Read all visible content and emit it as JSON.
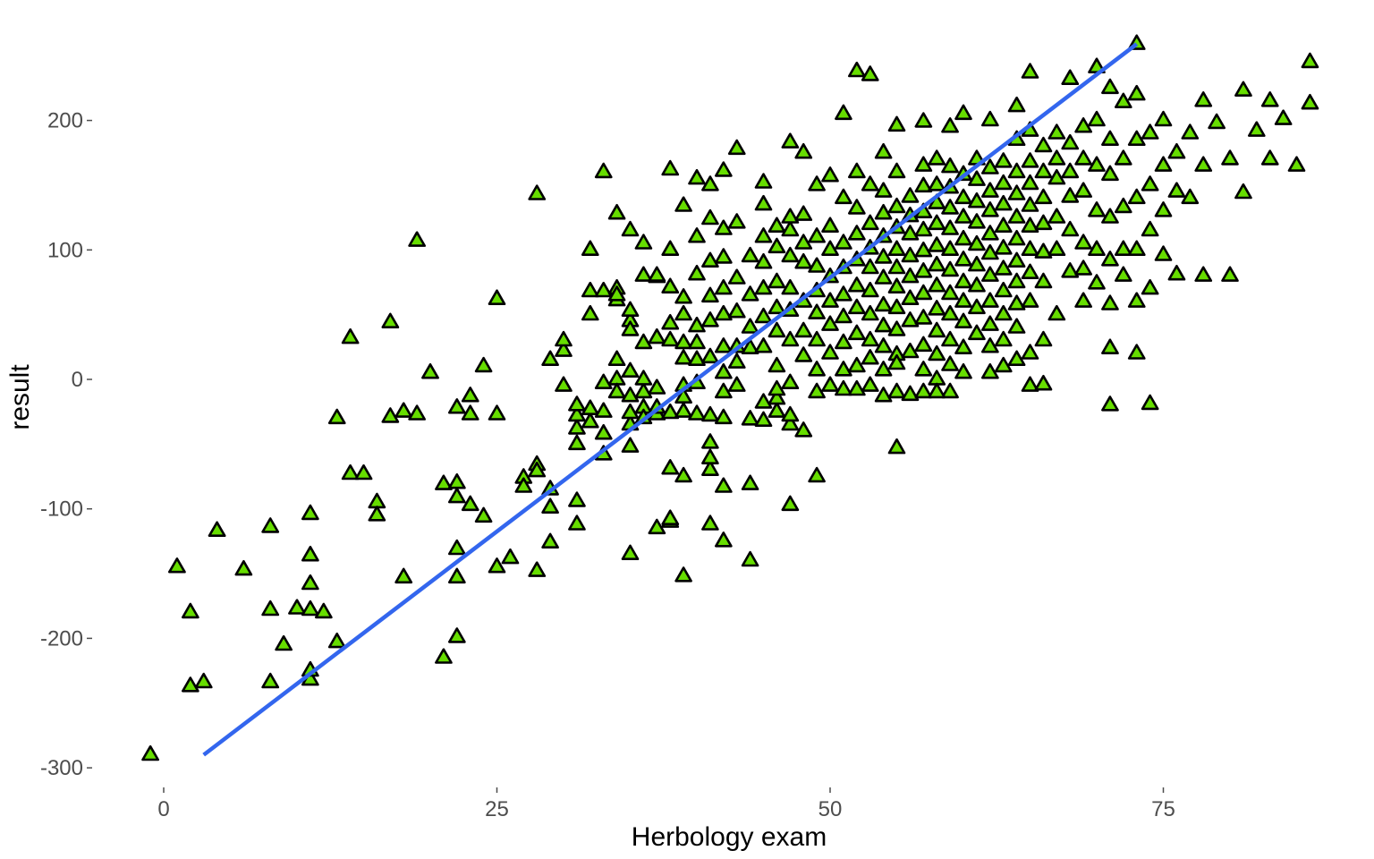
{
  "chart_data": {
    "type": "scatter",
    "title": "",
    "xlabel": "Herbology exam",
    "ylabel": "result",
    "xlim": [
      -3,
      88
    ],
    "ylim": [
      -315,
      270
    ],
    "x_ticks": [
      0,
      25,
      50,
      75
    ],
    "y_ticks": [
      200,
      100,
      0,
      -100,
      -200,
      -300
    ],
    "x_tick_labels": [
      "0",
      "25",
      "50",
      "75"
    ],
    "y_tick_labels": [
      "200",
      "100",
      "0",
      "-100",
      "-200",
      "-300"
    ],
    "grid": false,
    "legend": "none",
    "point_shape": "triangle",
    "point_fill": "#66dd00",
    "point_outline": "#000000",
    "fit_line": {
      "x": [
        3,
        73
      ],
      "y": [
        -290,
        259
      ],
      "color": "#3366ee"
    },
    "points": [
      [
        -1,
        -290
      ],
      [
        1,
        -145
      ],
      [
        2,
        -180
      ],
      [
        2,
        -237
      ],
      [
        3,
        -234
      ],
      [
        4,
        -117
      ],
      [
        6,
        -147
      ],
      [
        8,
        -178
      ],
      [
        8,
        -234
      ],
      [
        8,
        -114
      ],
      [
        9,
        -205
      ],
      [
        10,
        -177
      ],
      [
        11,
        -232
      ],
      [
        11,
        -104
      ],
      [
        11,
        -136
      ],
      [
        11,
        -158
      ],
      [
        11,
        -178
      ],
      [
        11,
        -225
      ],
      [
        12,
        -180
      ],
      [
        13,
        -203
      ],
      [
        13,
        -30
      ],
      [
        14,
        32
      ],
      [
        14,
        -73
      ],
      [
        15,
        -73
      ],
      [
        16,
        -95
      ],
      [
        16,
        -105
      ],
      [
        17,
        -29
      ],
      [
        17,
        44
      ],
      [
        18,
        -153
      ],
      [
        18,
        -25
      ],
      [
        19,
        -27
      ],
      [
        19,
        107
      ],
      [
        20,
        5
      ],
      [
        21,
        -81
      ],
      [
        21,
        -215
      ],
      [
        22,
        -199
      ],
      [
        22,
        -131
      ],
      [
        22,
        -153
      ],
      [
        22,
        -22
      ],
      [
        22,
        -80
      ],
      [
        22,
        -91
      ],
      [
        23,
        -97
      ],
      [
        23,
        -13
      ],
      [
        23,
        -27
      ],
      [
        24,
        -106
      ],
      [
        24,
        10
      ],
      [
        25,
        -27
      ],
      [
        25,
        62
      ],
      [
        25,
        -145
      ],
      [
        26,
        -138
      ],
      [
        27,
        -76
      ],
      [
        27,
        -83
      ],
      [
        28,
        -148
      ],
      [
        28,
        143
      ],
      [
        28,
        -66
      ],
      [
        28,
        -71
      ],
      [
        29,
        -99
      ],
      [
        29,
        -85
      ],
      [
        29,
        15
      ],
      [
        29,
        -126
      ],
      [
        30,
        -5
      ],
      [
        30,
        22
      ],
      [
        30,
        30
      ],
      [
        31,
        -112
      ],
      [
        31,
        -94
      ],
      [
        31,
        -50
      ],
      [
        31,
        -38
      ],
      [
        31,
        -28
      ],
      [
        31,
        -20
      ],
      [
        32,
        100
      ],
      [
        32,
        68
      ],
      [
        32,
        50
      ],
      [
        32,
        -33
      ],
      [
        32,
        -23
      ],
      [
        33,
        -42
      ],
      [
        33,
        -58
      ],
      [
        33,
        -25
      ],
      [
        33,
        -3
      ],
      [
        33,
        68
      ],
      [
        33,
        160
      ],
      [
        34,
        0
      ],
      [
        34,
        15
      ],
      [
        34,
        -10
      ],
      [
        34,
        61
      ],
      [
        34,
        70
      ],
      [
        34,
        65
      ],
      [
        34,
        128
      ],
      [
        35,
        -135
      ],
      [
        35,
        -52
      ],
      [
        35,
        -13
      ],
      [
        35,
        -35
      ],
      [
        35,
        -26
      ],
      [
        35,
        6
      ],
      [
        35,
        45
      ],
      [
        35,
        53
      ],
      [
        35,
        38
      ],
      [
        35,
        115
      ],
      [
        36,
        -22
      ],
      [
        36,
        -30
      ],
      [
        36,
        -10
      ],
      [
        36,
        80
      ],
      [
        36,
        105
      ],
      [
        36,
        0
      ],
      [
        36,
        28
      ],
      [
        37,
        -115
      ],
      [
        37,
        -27
      ],
      [
        37,
        -22
      ],
      [
        37,
        -7
      ],
      [
        37,
        32
      ],
      [
        37,
        79
      ],
      [
        37,
        80
      ],
      [
        38,
        -110
      ],
      [
        38,
        -108
      ],
      [
        38,
        -69
      ],
      [
        38,
        -26
      ],
      [
        38,
        30
      ],
      [
        38,
        43
      ],
      [
        38,
        71
      ],
      [
        38,
        100
      ],
      [
        38,
        162
      ],
      [
        39,
        -152
      ],
      [
        39,
        -75
      ],
      [
        39,
        -25
      ],
      [
        39,
        -5
      ],
      [
        39,
        -14
      ],
      [
        39,
        16
      ],
      [
        39,
        28
      ],
      [
        39,
        50
      ],
      [
        39,
        63
      ],
      [
        39,
        134
      ],
      [
        40,
        -27
      ],
      [
        40,
        -3
      ],
      [
        40,
        15
      ],
      [
        40,
        28
      ],
      [
        40,
        41
      ],
      [
        40,
        81
      ],
      [
        40,
        110
      ],
      [
        40,
        155
      ],
      [
        41,
        -112
      ],
      [
        41,
        -70
      ],
      [
        41,
        -61
      ],
      [
        41,
        -49
      ],
      [
        41,
        -28
      ],
      [
        41,
        17
      ],
      [
        41,
        45
      ],
      [
        41,
        64
      ],
      [
        41,
        91
      ],
      [
        41,
        124
      ],
      [
        41,
        150
      ],
      [
        42,
        -125
      ],
      [
        42,
        -83
      ],
      [
        42,
        -30
      ],
      [
        42,
        -10
      ],
      [
        42,
        5
      ],
      [
        42,
        25
      ],
      [
        42,
        50
      ],
      [
        42,
        70
      ],
      [
        42,
        94
      ],
      [
        42,
        116
      ],
      [
        42,
        161
      ],
      [
        43,
        -5
      ],
      [
        43,
        13
      ],
      [
        43,
        25
      ],
      [
        43,
        52
      ],
      [
        43,
        78
      ],
      [
        43,
        121
      ],
      [
        43,
        178
      ],
      [
        44,
        -31
      ],
      [
        44,
        -140
      ],
      [
        44,
        -81
      ],
      [
        44,
        24
      ],
      [
        44,
        40
      ],
      [
        44,
        65
      ],
      [
        44,
        95
      ],
      [
        45,
        -32
      ],
      [
        45,
        -18
      ],
      [
        45,
        25
      ],
      [
        45,
        48
      ],
      [
        45,
        70
      ],
      [
        45,
        90
      ],
      [
        45,
        110
      ],
      [
        45,
        135
      ],
      [
        45,
        152
      ],
      [
        46,
        -25
      ],
      [
        46,
        -15
      ],
      [
        46,
        -8
      ],
      [
        46,
        10
      ],
      [
        46,
        37
      ],
      [
        46,
        55
      ],
      [
        46,
        75
      ],
      [
        46,
        102
      ],
      [
        46,
        118
      ],
      [
        47,
        -97
      ],
      [
        47,
        -35
      ],
      [
        47,
        -28
      ],
      [
        47,
        -3
      ],
      [
        47,
        30
      ],
      [
        47,
        53
      ],
      [
        47,
        70
      ],
      [
        47,
        95
      ],
      [
        47,
        115
      ],
      [
        47,
        125
      ],
      [
        47,
        183
      ],
      [
        48,
        -40
      ],
      [
        48,
        18
      ],
      [
        48,
        37
      ],
      [
        48,
        60
      ],
      [
        48,
        90
      ],
      [
        48,
        105
      ],
      [
        48,
        127
      ],
      [
        48,
        175
      ],
      [
        49,
        -75
      ],
      [
        49,
        -10
      ],
      [
        49,
        7
      ],
      [
        49,
        30
      ],
      [
        49,
        51
      ],
      [
        49,
        68
      ],
      [
        49,
        87
      ],
      [
        49,
        110
      ],
      [
        49,
        150
      ],
      [
        50,
        -5
      ],
      [
        50,
        20
      ],
      [
        50,
        42
      ],
      [
        50,
        60
      ],
      [
        50,
        79
      ],
      [
        50,
        100
      ],
      [
        50,
        118
      ],
      [
        50,
        157
      ],
      [
        51,
        -8
      ],
      [
        51,
        7
      ],
      [
        51,
        28
      ],
      [
        51,
        48
      ],
      [
        51,
        65
      ],
      [
        51,
        86
      ],
      [
        51,
        105
      ],
      [
        51,
        140
      ],
      [
        51,
        205
      ],
      [
        52,
        -8
      ],
      [
        52,
        10
      ],
      [
        52,
        35
      ],
      [
        52,
        55
      ],
      [
        52,
        72
      ],
      [
        52,
        92
      ],
      [
        52,
        112
      ],
      [
        52,
        132
      ],
      [
        52,
        160
      ],
      [
        53,
        -5
      ],
      [
        53,
        16
      ],
      [
        53,
        30
      ],
      [
        53,
        50
      ],
      [
        53,
        68
      ],
      [
        53,
        86
      ],
      [
        53,
        101
      ],
      [
        53,
        120
      ],
      [
        53,
        150
      ],
      [
        53,
        235
      ],
      [
        54,
        -13
      ],
      [
        54,
        7
      ],
      [
        54,
        25
      ],
      [
        54,
        41
      ],
      [
        54,
        57
      ],
      [
        54,
        78
      ],
      [
        54,
        94
      ],
      [
        54,
        110
      ],
      [
        54,
        128
      ],
      [
        54,
        145
      ],
      [
        54,
        175
      ],
      [
        55,
        -53
      ],
      [
        55,
        -10
      ],
      [
        55,
        19
      ],
      [
        55,
        38
      ],
      [
        55,
        55
      ],
      [
        55,
        71
      ],
      [
        55,
        86
      ],
      [
        55,
        100
      ],
      [
        55,
        117
      ],
      [
        55,
        133
      ],
      [
        55,
        160
      ],
      [
        55,
        196
      ],
      [
        56,
        -12
      ],
      [
        56,
        21
      ],
      [
        56,
        45
      ],
      [
        56,
        62
      ],
      [
        56,
        79
      ],
      [
        56,
        95
      ],
      [
        56,
        112
      ],
      [
        56,
        126
      ],
      [
        56,
        141
      ],
      [
        57,
        -10
      ],
      [
        57,
        7
      ],
      [
        57,
        26
      ],
      [
        57,
        47
      ],
      [
        57,
        66
      ],
      [
        57,
        83
      ],
      [
        57,
        99
      ],
      [
        57,
        115
      ],
      [
        57,
        129
      ],
      [
        57,
        149
      ],
      [
        57,
        165
      ],
      [
        57,
        199
      ],
      [
        58,
        0
      ],
      [
        58,
        19
      ],
      [
        58,
        37
      ],
      [
        58,
        54
      ],
      [
        58,
        72
      ],
      [
        58,
        88
      ],
      [
        58,
        103
      ],
      [
        58,
        120
      ],
      [
        58,
        136
      ],
      [
        58,
        150
      ],
      [
        58,
        170
      ],
      [
        59,
        -10
      ],
      [
        59,
        11
      ],
      [
        59,
        30
      ],
      [
        59,
        50
      ],
      [
        59,
        66
      ],
      [
        59,
        84
      ],
      [
        59,
        100
      ],
      [
        59,
        116
      ],
      [
        59,
        132
      ],
      [
        59,
        148
      ],
      [
        59,
        164
      ],
      [
        59,
        195
      ],
      [
        60,
        5
      ],
      [
        60,
        24
      ],
      [
        60,
        44
      ],
      [
        60,
        60
      ],
      [
        60,
        75
      ],
      [
        60,
        92
      ],
      [
        60,
        108
      ],
      [
        60,
        125
      ],
      [
        60,
        140
      ],
      [
        60,
        158
      ],
      [
        60,
        205
      ],
      [
        61,
        35
      ],
      [
        61,
        55
      ],
      [
        61,
        72
      ],
      [
        61,
        88
      ],
      [
        61,
        104
      ],
      [
        61,
        121
      ],
      [
        61,
        137
      ],
      [
        61,
        154
      ],
      [
        61,
        170
      ],
      [
        62,
        5
      ],
      [
        62,
        25
      ],
      [
        62,
        42
      ],
      [
        62,
        60
      ],
      [
        62,
        80
      ],
      [
        62,
        97
      ],
      [
        62,
        112
      ],
      [
        62,
        130
      ],
      [
        62,
        145
      ],
      [
        62,
        163
      ],
      [
        62,
        200
      ],
      [
        63,
        10
      ],
      [
        63,
        30
      ],
      [
        63,
        50
      ],
      [
        63,
        68
      ],
      [
        63,
        85
      ],
      [
        63,
        101
      ],
      [
        63,
        118
      ],
      [
        63,
        135
      ],
      [
        63,
        151
      ],
      [
        63,
        168
      ],
      [
        64,
        15
      ],
      [
        64,
        40
      ],
      [
        64,
        58
      ],
      [
        64,
        75
      ],
      [
        64,
        91
      ],
      [
        64,
        108
      ],
      [
        64,
        125
      ],
      [
        64,
        143
      ],
      [
        64,
        160
      ],
      [
        64,
        185
      ],
      [
        64,
        211
      ],
      [
        65,
        -5
      ],
      [
        65,
        20
      ],
      [
        65,
        60
      ],
      [
        65,
        82
      ],
      [
        65,
        100
      ],
      [
        65,
        118
      ],
      [
        65,
        134
      ],
      [
        65,
        151
      ],
      [
        65,
        168
      ],
      [
        65,
        192
      ],
      [
        65,
        237
      ],
      [
        66,
        30
      ],
      [
        66,
        75
      ],
      [
        66,
        98
      ],
      [
        66,
        120
      ],
      [
        66,
        140
      ],
      [
        66,
        160
      ],
      [
        66,
        180
      ],
      [
        67,
        50
      ],
      [
        67,
        100
      ],
      [
        67,
        125
      ],
      [
        67,
        155
      ],
      [
        67,
        170
      ],
      [
        67,
        190
      ],
      [
        68,
        83
      ],
      [
        68,
        115
      ],
      [
        68,
        141
      ],
      [
        68,
        160
      ],
      [
        68,
        182
      ],
      [
        68,
        232
      ],
      [
        69,
        60
      ],
      [
        69,
        85
      ],
      [
        69,
        105
      ],
      [
        69,
        145
      ],
      [
        69,
        170
      ],
      [
        69,
        195
      ],
      [
        70,
        74
      ],
      [
        70,
        100
      ],
      [
        70,
        130
      ],
      [
        70,
        165
      ],
      [
        70,
        200
      ],
      [
        70,
        241
      ],
      [
        71,
        -20
      ],
      [
        71,
        24
      ],
      [
        71,
        58
      ],
      [
        71,
        92
      ],
      [
        71,
        125
      ],
      [
        71,
        158
      ],
      [
        71,
        185
      ],
      [
        71,
        225
      ],
      [
        72,
        80
      ],
      [
        72,
        100
      ],
      [
        72,
        133
      ],
      [
        72,
        170
      ],
      [
        72,
        214
      ],
      [
        73,
        20
      ],
      [
        73,
        60
      ],
      [
        73,
        100
      ],
      [
        73,
        140
      ],
      [
        73,
        185
      ],
      [
        73,
        220
      ],
      [
        74,
        70
      ],
      [
        74,
        115
      ],
      [
        74,
        150
      ],
      [
        74,
        190
      ],
      [
        75,
        96
      ],
      [
        75,
        130
      ],
      [
        75,
        165
      ],
      [
        75,
        200
      ],
      [
        76,
        81
      ],
      [
        76,
        145
      ],
      [
        76,
        175
      ],
      [
        77,
        140
      ],
      [
        77,
        190
      ],
      [
        78,
        80
      ],
      [
        78,
        165
      ],
      [
        78,
        215
      ],
      [
        79,
        198
      ],
      [
        80,
        80
      ],
      [
        80,
        170
      ],
      [
        81,
        144
      ],
      [
        81,
        223
      ],
      [
        82,
        192
      ],
      [
        83,
        170
      ],
      [
        83,
        215
      ],
      [
        84,
        201
      ],
      [
        85,
        165
      ],
      [
        86,
        213
      ],
      [
        86,
        245
      ],
      [
        73,
        259
      ],
      [
        74,
        -19
      ],
      [
        66,
        -4
      ],
      [
        58,
        -10
      ],
      [
        52,
        238
      ],
      [
        55,
        12
      ]
    ]
  }
}
